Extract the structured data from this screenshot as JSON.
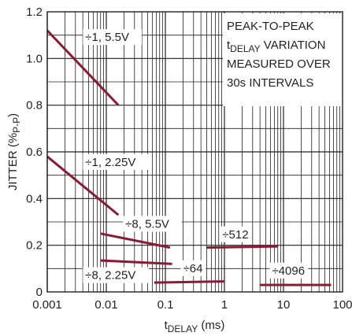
{
  "chart_data": {
    "type": "line",
    "title": "",
    "xlabel": {
      "main": "t",
      "sub": "DELAY",
      "unit": " (ms)"
    },
    "ylabel": {
      "main": "JITTER (%",
      "sub": "P-P",
      "close": ")"
    },
    "x_scale": "log",
    "xlim": [
      0.001,
      100
    ],
    "ylim": [
      0,
      1.2
    ],
    "x_ticks": [
      {
        "v": 0.001,
        "label": "0.001"
      },
      {
        "v": 0.01,
        "label": "0.01"
      },
      {
        "v": 0.1,
        "label": "0.1"
      },
      {
        "v": 1,
        "label": "1"
      },
      {
        "v": 10,
        "label": "10"
      },
      {
        "v": 100,
        "label": "100"
      }
    ],
    "y_ticks": [
      {
        "v": 0,
        "label": "0"
      },
      {
        "v": 0.2,
        "label": "0.2"
      },
      {
        "v": 0.4,
        "label": "0.4"
      },
      {
        "v": 0.6,
        "label": "0.6"
      },
      {
        "v": 0.8,
        "label": "0.8"
      },
      {
        "v": 1.0,
        "label": "1.0"
      },
      {
        "v": 1.2,
        "label": "1.2"
      }
    ],
    "grid": true,
    "line_color": "#8b1a32",
    "series": [
      {
        "name": "÷1, 5.5V",
        "points": [
          [
            0.001,
            1.12
          ],
          [
            0.016,
            0.8
          ]
        ]
      },
      {
        "name": "÷1, 2.25V",
        "points": [
          [
            0.001,
            0.58
          ],
          [
            0.016,
            0.33
          ]
        ]
      },
      {
        "name": "÷8, 5.5V",
        "points": [
          [
            0.008,
            0.25
          ],
          [
            0.12,
            0.19
          ]
        ]
      },
      {
        "name": "÷8, 2.25V",
        "points": [
          [
            0.008,
            0.135
          ],
          [
            0.13,
            0.12
          ]
        ]
      },
      {
        "name": "÷64",
        "points": [
          [
            0.065,
            0.04
          ],
          [
            1.0,
            0.045
          ]
        ]
      },
      {
        "name": "÷512",
        "points": [
          [
            0.5,
            0.19
          ],
          [
            8.0,
            0.195
          ]
        ]
      },
      {
        "name": "÷4096",
        "points": [
          [
            4.0,
            0.03
          ],
          [
            64,
            0.03
          ]
        ]
      }
    ],
    "annotation": {
      "lines": [
        {
          "main": "PEAK-TO-PEAK"
        },
        {
          "main": "t",
          "sub": "DELAY",
          "rest": " VARIATION"
        },
        {
          "main": "MEASURED OVER"
        },
        {
          "main": "30s INTERVALS"
        }
      ]
    }
  }
}
